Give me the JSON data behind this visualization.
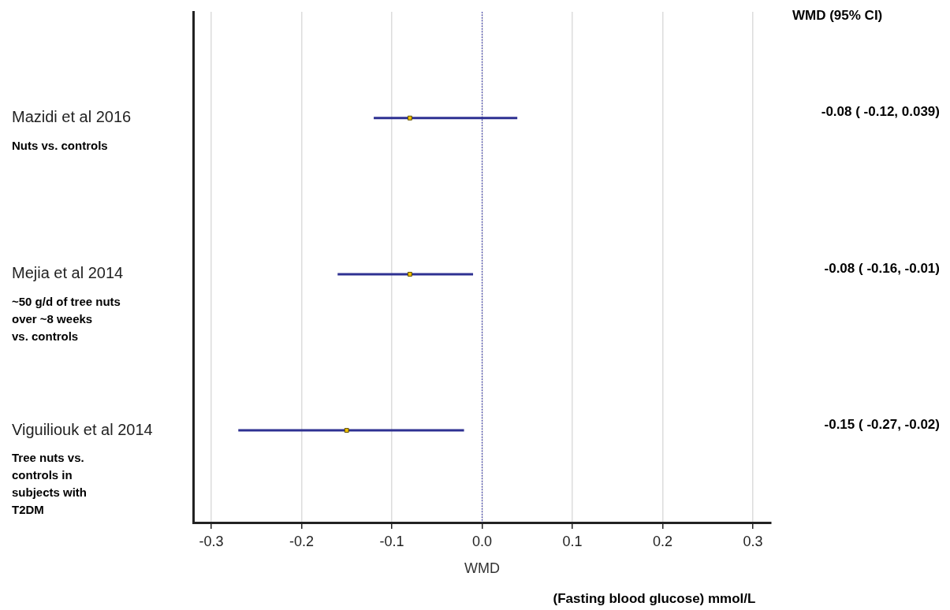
{
  "chart_data": {
    "type": "scatter",
    "orientation": "horizontal",
    "xlabel": "WMD",
    "categories": [
      "Mazidi et al 2016",
      "Mejia et al 2014",
      "Viguiliouk et al 2014"
    ],
    "values": [
      -0.08,
      -0.08,
      -0.15
    ],
    "errors": [
      [
        -0.12,
        0.039
      ],
      [
        -0.16,
        -0.01
      ],
      [
        -0.27,
        -0.02
      ]
    ],
    "value_labels": [
      "-0.08 ( -0.12, 0.039)",
      "-0.08 ( -0.16, -0.01)",
      "-0.15 ( -0.27, -0.02)"
    ],
    "color": "#f2c200",
    "marker": "square",
    "xlim": [
      -0.32,
      0.32
    ],
    "xticks": [
      -0.3,
      -0.2,
      -0.1,
      {
        "value": 0,
        "label": "0.0"
      },
      0.1,
      0.2,
      0.3
    ],
    "grid": "x",
    "ref_lines": [
      {
        "axis": "x",
        "value": 0,
        "color": "#3333aa",
        "line_style": "dotted"
      }
    ],
    "annotations": [
      "WMD (95% CI)",
      "Nuts vs. controls",
      "~50 g/d of tree nuts\nover ~8 weeks\nvs. controls",
      "Tree nuts vs.\ncontrols in\nsubjects with\nT2DM",
      "(Fasting blood glucose) mmol/L"
    ]
  }
}
